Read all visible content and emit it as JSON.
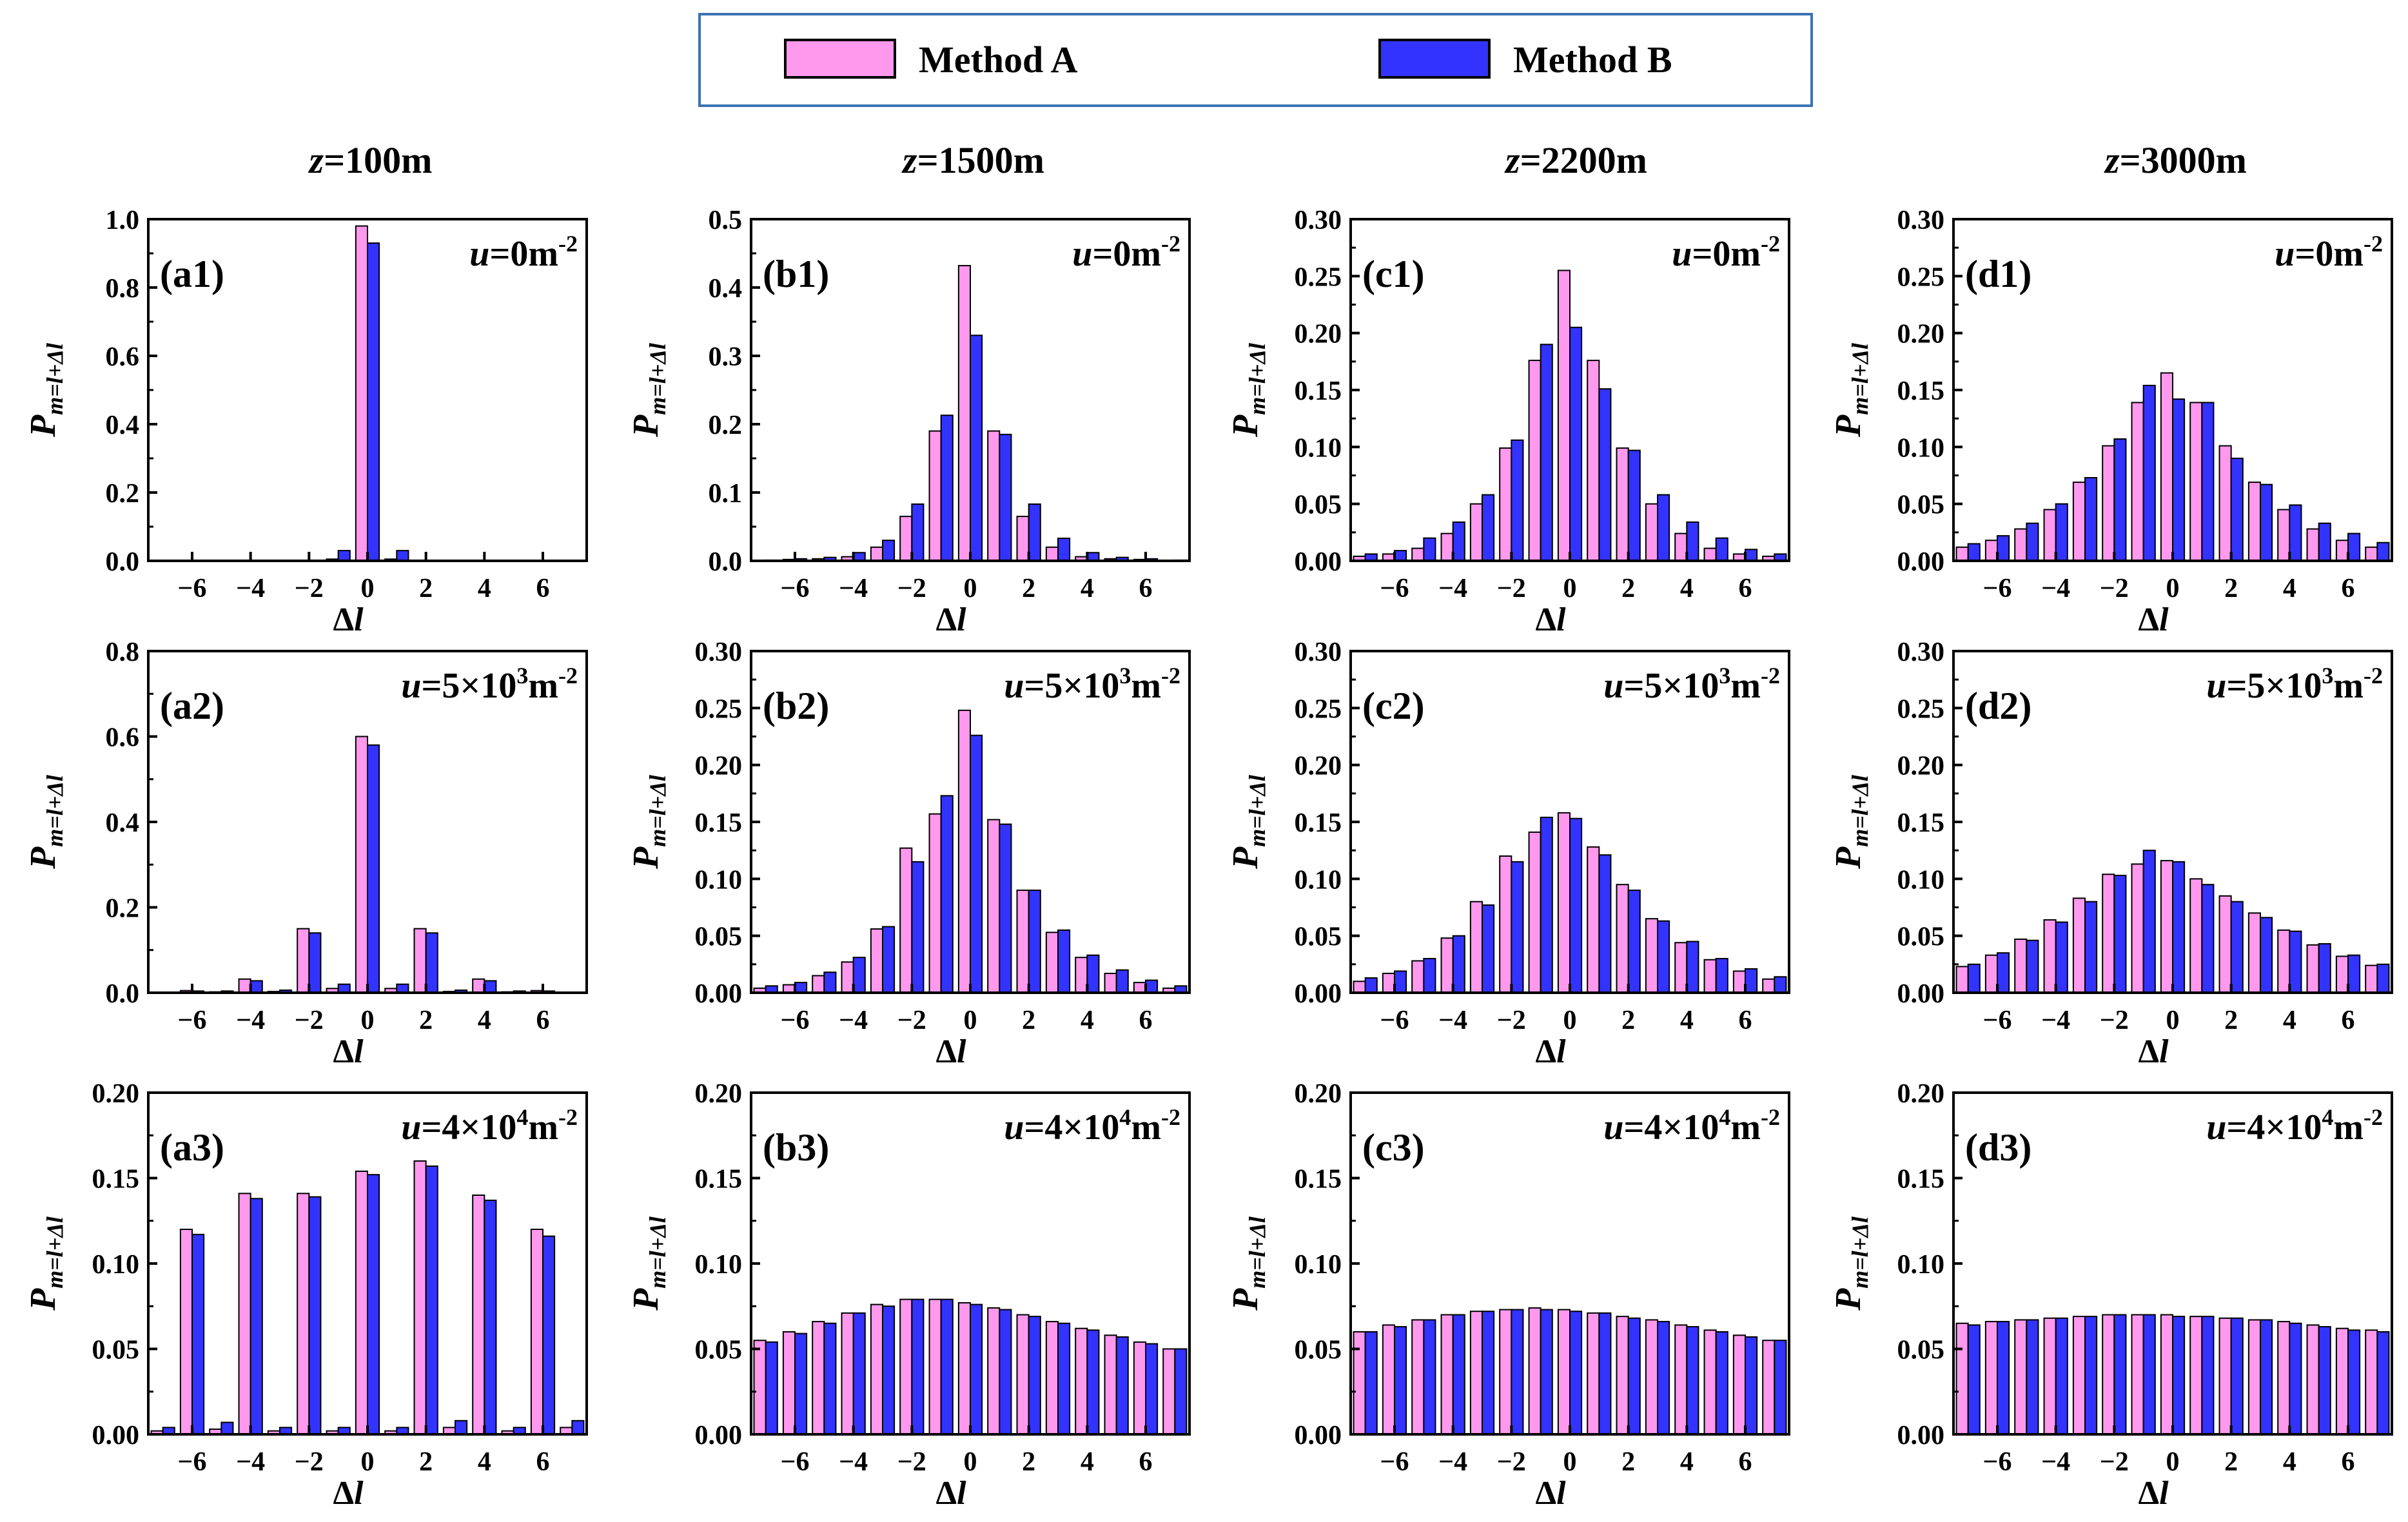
{
  "legend": {
    "series": [
      {
        "name": "Method A",
        "color": "#ff99ee"
      },
      {
        "name": "Method B",
        "color": "#3333ff"
      }
    ],
    "position": "top-center"
  },
  "column_titles": [
    {
      "italic": "z",
      "text": "=100m"
    },
    {
      "italic": "z",
      "text": "=1500m"
    },
    {
      "italic": "z",
      "text": "=2200m"
    },
    {
      "italic": "z",
      "text": "=3000m"
    }
  ],
  "axis_labels": {
    "x": {
      "symbol": "Δ",
      "italic": "l"
    },
    "y": {
      "base": "P",
      "subscript": "m=l+Δl"
    }
  },
  "chart_data": [
    {
      "id": "a1",
      "type": "bar",
      "label": "(a1)",
      "annotation": {
        "italic": "u",
        "text": "=0m",
        "sup": "-2"
      },
      "ylim": [
        0,
        1.0
      ],
      "yticks": [
        0,
        0.2,
        0.4,
        0.6,
        0.8,
        1.0
      ],
      "ytick_labels": [
        "0.0",
        "0.2",
        "0.4",
        "0.6",
        "0.8",
        "1.0"
      ],
      "x": [
        -1,
        0,
        1
      ],
      "series": [
        {
          "name": "Method A",
          "values": [
            0.005,
            0.98,
            0.005
          ]
        },
        {
          "name": "Method B",
          "values": [
            0.03,
            0.93,
            0.03
          ]
        }
      ]
    },
    {
      "id": "b1",
      "type": "bar",
      "label": "(b1)",
      "annotation": {
        "italic": "u",
        "text": "=0m",
        "sup": "-2"
      },
      "ylim": [
        0,
        0.5
      ],
      "yticks": [
        0,
        0.1,
        0.2,
        0.3,
        0.4,
        0.5
      ],
      "ytick_labels": [
        "0.0",
        "0.1",
        "0.2",
        "0.3",
        "0.4",
        "0.5"
      ],
      "x": [
        -7,
        -6,
        -5,
        -4,
        -3,
        -2,
        -1,
        0,
        1,
        2,
        3,
        4,
        5,
        6,
        7
      ],
      "series": [
        {
          "name": "Method A",
          "values": [
            0,
            0.002,
            0.003,
            0.006,
            0.02,
            0.065,
            0.19,
            0.432,
            0.19,
            0.065,
            0.02,
            0.006,
            0.003,
            0.002,
            0
          ]
        },
        {
          "name": "Method B",
          "values": [
            0.001,
            0.003,
            0.005,
            0.012,
            0.03,
            0.083,
            0.213,
            0.33,
            0.185,
            0.083,
            0.033,
            0.012,
            0.005,
            0.003,
            0.001
          ]
        }
      ]
    },
    {
      "id": "c1",
      "type": "bar",
      "label": "(c1)",
      "annotation": {
        "italic": "u",
        "text": "=0m",
        "sup": "-2"
      },
      "ylim": [
        0,
        0.3
      ],
      "yticks": [
        0,
        0.05,
        0.1,
        0.15,
        0.2,
        0.25,
        0.3
      ],
      "ytick_labels": [
        "0.00",
        "0.05",
        "0.10",
        "0.15",
        "0.20",
        "0.25",
        "0.30"
      ],
      "x": [
        -7,
        -6,
        -5,
        -4,
        -3,
        -2,
        -1,
        0,
        1,
        2,
        3,
        4,
        5,
        6,
        7
      ],
      "series": [
        {
          "name": "Method A",
          "values": [
            0.004,
            0.006,
            0.011,
            0.024,
            0.05,
            0.099,
            0.176,
            0.255,
            0.176,
            0.099,
            0.05,
            0.024,
            0.011,
            0.006,
            0.004
          ]
        },
        {
          "name": "Method B",
          "values": [
            0.006,
            0.009,
            0.02,
            0.034,
            0.058,
            0.106,
            0.19,
            0.205,
            0.151,
            0.097,
            0.058,
            0.034,
            0.02,
            0.01,
            0.006
          ]
        }
      ]
    },
    {
      "id": "d1",
      "type": "bar",
      "label": "(d1)",
      "annotation": {
        "italic": "u",
        "text": "=0m",
        "sup": "-2"
      },
      "ylim": [
        0,
        0.3
      ],
      "yticks": [
        0,
        0.05,
        0.1,
        0.15,
        0.2,
        0.25,
        0.3
      ],
      "ytick_labels": [
        "0.00",
        "0.05",
        "0.10",
        "0.15",
        "0.20",
        "0.25",
        "0.30"
      ],
      "x": [
        -7,
        -6,
        -5,
        -4,
        -3,
        -2,
        -1,
        0,
        1,
        2,
        3,
        4,
        5,
        6,
        7
      ],
      "series": [
        {
          "name": "Method A",
          "values": [
            0.012,
            0.018,
            0.028,
            0.045,
            0.069,
            0.101,
            0.139,
            0.165,
            0.139,
            0.101,
            0.069,
            0.045,
            0.028,
            0.018,
            0.012
          ]
        },
        {
          "name": "Method B",
          "values": [
            0.015,
            0.022,
            0.033,
            0.05,
            0.073,
            0.107,
            0.154,
            0.142,
            0.139,
            0.09,
            0.067,
            0.049,
            0.033,
            0.024,
            0.016
          ]
        }
      ]
    },
    {
      "id": "a2",
      "type": "bar",
      "label": "(a2)",
      "annotation": {
        "italic": "u",
        "text": "=5×10",
        "sup1": "3",
        "text2": "m",
        "sup": "-2"
      },
      "ylim": [
        0,
        0.8
      ],
      "yticks": [
        0,
        0.2,
        0.4,
        0.6,
        0.8
      ],
      "ytick_labels": [
        "0.0",
        "0.2",
        "0.4",
        "0.6",
        "0.8"
      ],
      "x": [
        -6,
        -5,
        -4,
        -3,
        -2,
        -1,
        0,
        1,
        2,
        3,
        4,
        5,
        6
      ],
      "series": [
        {
          "name": "Method A",
          "values": [
            0.005,
            0.002,
            0.032,
            0.003,
            0.15,
            0.01,
            0.6,
            0.01,
            0.15,
            0.003,
            0.032,
            0.002,
            0.005
          ]
        },
        {
          "name": "Method B",
          "values": [
            0.004,
            0.004,
            0.028,
            0.006,
            0.14,
            0.02,
            0.58,
            0.02,
            0.14,
            0.006,
            0.028,
            0.004,
            0.004
          ]
        }
      ]
    },
    {
      "id": "b2",
      "type": "bar",
      "label": "(b2)",
      "annotation": {
        "italic": "u",
        "text": "=5×10",
        "sup1": "3",
        "text2": "m",
        "sup": "-2"
      },
      "ylim": [
        0,
        0.3
      ],
      "yticks": [
        0,
        0.05,
        0.1,
        0.15,
        0.2,
        0.25,
        0.3
      ],
      "ytick_labels": [
        "0.00",
        "0.05",
        "0.10",
        "0.15",
        "0.20",
        "0.25",
        "0.30"
      ],
      "x": [
        -7,
        -6,
        -5,
        -4,
        -3,
        -2,
        -1,
        0,
        1,
        2,
        3,
        4,
        5,
        6,
        7
      ],
      "series": [
        {
          "name": "Method A",
          "values": [
            0.004,
            0.007,
            0.015,
            0.027,
            0.056,
            0.127,
            0.157,
            0.248,
            0.152,
            0.09,
            0.053,
            0.031,
            0.017,
            0.009,
            0.004
          ]
        },
        {
          "name": "Method B",
          "values": [
            0.006,
            0.009,
            0.018,
            0.031,
            0.058,
            0.115,
            0.173,
            0.226,
            0.148,
            0.09,
            0.055,
            0.033,
            0.02,
            0.011,
            0.006
          ]
        }
      ]
    },
    {
      "id": "c2",
      "type": "bar",
      "label": "(c2)",
      "annotation": {
        "italic": "u",
        "text": "=5×10",
        "sup1": "3",
        "text2": "m",
        "sup": "-2"
      },
      "ylim": [
        0,
        0.3
      ],
      "yticks": [
        0,
        0.05,
        0.1,
        0.15,
        0.2,
        0.25,
        0.3
      ],
      "ytick_labels": [
        "0.00",
        "0.05",
        "0.10",
        "0.15",
        "0.20",
        "0.25",
        "0.30"
      ],
      "x": [
        -7,
        -6,
        -5,
        -4,
        -3,
        -2,
        -1,
        0,
        1,
        2,
        3,
        4,
        5,
        6,
        7
      ],
      "series": [
        {
          "name": "Method A",
          "values": [
            0.01,
            0.017,
            0.028,
            0.048,
            0.08,
            0.12,
            0.141,
            0.158,
            0.128,
            0.095,
            0.065,
            0.044,
            0.029,
            0.019,
            0.012
          ]
        },
        {
          "name": "Method B",
          "values": [
            0.013,
            0.019,
            0.03,
            0.05,
            0.077,
            0.115,
            0.154,
            0.153,
            0.121,
            0.09,
            0.063,
            0.045,
            0.03,
            0.021,
            0.014
          ]
        }
      ]
    },
    {
      "id": "d2",
      "type": "bar",
      "label": "(d2)",
      "annotation": {
        "italic": "u",
        "text": "=5×10",
        "sup1": "3",
        "text2": "m",
        "sup": "-2"
      },
      "ylim": [
        0,
        0.3
      ],
      "yticks": [
        0,
        0.05,
        0.1,
        0.15,
        0.2,
        0.25,
        0.3
      ],
      "ytick_labels": [
        "0.00",
        "0.05",
        "0.10",
        "0.15",
        "0.20",
        "0.25",
        "0.30"
      ],
      "x": [
        -7,
        -6,
        -5,
        -4,
        -3,
        -2,
        -1,
        0,
        1,
        2,
        3,
        4,
        5,
        6,
        7
      ],
      "series": [
        {
          "name": "Method A",
          "values": [
            0.023,
            0.033,
            0.047,
            0.064,
            0.083,
            0.104,
            0.113,
            0.116,
            0.1,
            0.085,
            0.07,
            0.055,
            0.042,
            0.032,
            0.024
          ]
        },
        {
          "name": "Method B",
          "values": [
            0.025,
            0.035,
            0.046,
            0.062,
            0.08,
            0.103,
            0.125,
            0.115,
            0.095,
            0.08,
            0.066,
            0.054,
            0.043,
            0.033,
            0.025
          ]
        }
      ]
    },
    {
      "id": "a3",
      "type": "bar",
      "label": "(a3)",
      "annotation": {
        "italic": "u",
        "text": "=4×10",
        "sup1": "4",
        "text2": "m",
        "sup": "-2"
      },
      "ylim": [
        0,
        0.2
      ],
      "yticks": [
        0,
        0.05,
        0.1,
        0.15,
        0.2
      ],
      "ytick_labels": [
        "0.00",
        "0.05",
        "0.10",
        "0.15",
        "0.20"
      ],
      "x": [
        -7,
        -6,
        -5,
        -4,
        -3,
        -2,
        -1,
        0,
        1,
        2,
        3,
        4,
        5,
        6,
        7
      ],
      "series": [
        {
          "name": "Method A",
          "values": [
            0.002,
            0.12,
            0.003,
            0.141,
            0.002,
            0.141,
            0.002,
            0.154,
            0.002,
            0.16,
            0.004,
            0.14,
            0.002,
            0.12,
            0.004
          ]
        },
        {
          "name": "Method B",
          "values": [
            0.004,
            0.117,
            0.007,
            0.138,
            0.004,
            0.139,
            0.004,
            0.152,
            0.004,
            0.157,
            0.008,
            0.137,
            0.004,
            0.116,
            0.008
          ]
        }
      ]
    },
    {
      "id": "b3",
      "type": "bar",
      "label": "(b3)",
      "annotation": {
        "italic": "u",
        "text": "=4×10",
        "sup1": "4",
        "text2": "m",
        "sup": "-2"
      },
      "ylim": [
        0,
        0.2
      ],
      "yticks": [
        0,
        0.05,
        0.1,
        0.15,
        0.2
      ],
      "ytick_labels": [
        "0.00",
        "0.05",
        "0.10",
        "0.15",
        "0.20"
      ],
      "x": [
        -7,
        -6,
        -5,
        -4,
        -3,
        -2,
        -1,
        0,
        1,
        2,
        3,
        4,
        5,
        6,
        7
      ],
      "series": [
        {
          "name": "Method A",
          "values": [
            0.055,
            0.06,
            0.066,
            0.071,
            0.076,
            0.079,
            0.079,
            0.077,
            0.074,
            0.07,
            0.066,
            0.062,
            0.058,
            0.054,
            0.05
          ]
        },
        {
          "name": "Method B",
          "values": [
            0.054,
            0.059,
            0.065,
            0.071,
            0.075,
            0.079,
            0.079,
            0.076,
            0.073,
            0.069,
            0.065,
            0.061,
            0.057,
            0.053,
            0.05
          ]
        }
      ]
    },
    {
      "id": "c3",
      "type": "bar",
      "label": "(c3)",
      "annotation": {
        "italic": "u",
        "text": "=4×10",
        "sup1": "4",
        "text2": "m",
        "sup": "-2"
      },
      "ylim": [
        0,
        0.2
      ],
      "yticks": [
        0,
        0.05,
        0.1,
        0.15,
        0.2
      ],
      "ytick_labels": [
        "0.00",
        "0.05",
        "0.10",
        "0.15",
        "0.20"
      ],
      "x": [
        -7,
        -6,
        -5,
        -4,
        -3,
        -2,
        -1,
        0,
        1,
        2,
        3,
        4,
        5,
        6,
        7
      ],
      "series": [
        {
          "name": "Method A",
          "values": [
            0.06,
            0.064,
            0.067,
            0.07,
            0.072,
            0.073,
            0.074,
            0.073,
            0.071,
            0.069,
            0.067,
            0.064,
            0.061,
            0.058,
            0.055
          ]
        },
        {
          "name": "Method B",
          "values": [
            0.06,
            0.063,
            0.067,
            0.07,
            0.072,
            0.073,
            0.073,
            0.072,
            0.071,
            0.068,
            0.066,
            0.063,
            0.06,
            0.057,
            0.055
          ]
        }
      ]
    },
    {
      "id": "d3",
      "type": "bar",
      "label": "(d3)",
      "annotation": {
        "italic": "u",
        "text": "=4×10",
        "sup1": "4",
        "text2": "m",
        "sup": "-2"
      },
      "ylim": [
        0,
        0.2
      ],
      "yticks": [
        0,
        0.05,
        0.1,
        0.15,
        0.2
      ],
      "ytick_labels": [
        "0.00",
        "0.05",
        "0.10",
        "0.15",
        "0.20"
      ],
      "x": [
        -7,
        -6,
        -5,
        -4,
        -3,
        -2,
        -1,
        0,
        1,
        2,
        3,
        4,
        5,
        6,
        7
      ],
      "series": [
        {
          "name": "Method A",
          "values": [
            0.065,
            0.066,
            0.067,
            0.068,
            0.069,
            0.07,
            0.07,
            0.07,
            0.069,
            0.068,
            0.067,
            0.066,
            0.064,
            0.062,
            0.061
          ]
        },
        {
          "name": "Method B",
          "values": [
            0.064,
            0.066,
            0.067,
            0.068,
            0.069,
            0.07,
            0.07,
            0.069,
            0.069,
            0.068,
            0.067,
            0.065,
            0.063,
            0.061,
            0.06
          ]
        }
      ]
    }
  ],
  "x_axis": {
    "xlim": [
      -7.5,
      7.5
    ],
    "ticks": [
      -6,
      -4,
      -2,
      0,
      2,
      4,
      6
    ],
    "tick_labels": [
      "−6",
      "−4",
      "−2",
      "0",
      "2",
      "4",
      "6"
    ]
  }
}
